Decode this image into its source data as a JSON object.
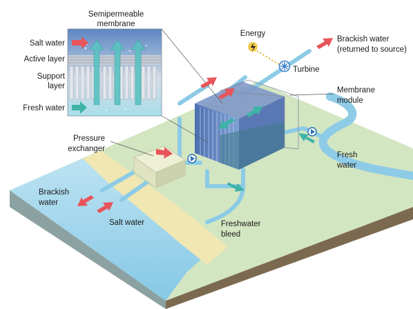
{
  "labels": {
    "semipermeable_membrane_1": "Semipermeable",
    "semipermeable_membrane_2": "membrane",
    "salt_water_top": "Salt water",
    "active_layer": "Active layer",
    "support_layer_1": "Support",
    "support_layer_2": "layer",
    "fresh_water_inset": "Fresh water",
    "energy": "Energy",
    "turbine": "Turbine",
    "brackish_return_1": "Brackish water",
    "brackish_return_2": "(returned to source)",
    "membrane_module_1": "Membrane",
    "membrane_module_2": "module",
    "pressure_exchanger_1": "Pressure",
    "pressure_exchanger_2": "exchanger",
    "fresh_water_river_1": "Fresh",
    "fresh_water_river_2": "water",
    "brackish_bottom_1": "Brackish",
    "brackish_bottom_2": "water",
    "salt_water_bottom": "Salt water",
    "freshwater_bleed_1": "Freshwater",
    "freshwater_bleed_2": "bleed"
  },
  "colors": {
    "salt_arrow": "#e8545a",
    "fresh_arrow": "#3fb3a8",
    "water": "#a8d8ee",
    "land": "#d4e6c4",
    "soil": "#8d7b60",
    "sand": "#f1e8b4",
    "pipe": "#8ccbe6"
  }
}
